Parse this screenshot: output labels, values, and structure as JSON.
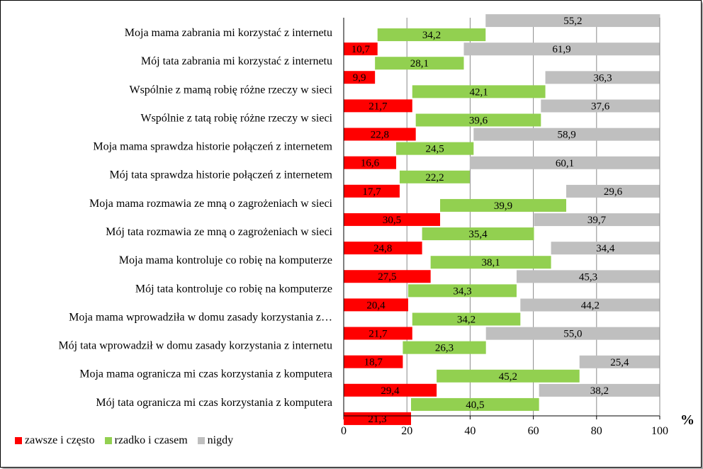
{
  "chart_data": {
    "type": "bar",
    "orientation": "horizontal",
    "stacked": true,
    "unit_label": "%",
    "xlim": [
      0,
      100
    ],
    "x_ticks": [
      "0",
      "20",
      "40",
      "60",
      "80",
      "100"
    ],
    "grid": "vertical",
    "legend_position": "bottom-left",
    "categories": [
      "Moja mama zabrania mi korzystać z internetu",
      "Mój tata zabrania mi korzystać z internetu",
      "Wspólnie z mamą robię różne rzeczy w sieci",
      "Wspólnie z tatą robię różne rzeczy  w sieci",
      "Moja mama sprawdza historie połączeń z internetem",
      "Mój tata sprawdza historie połączeń z internetem",
      "Moja mama rozmawia ze mną o zagrożeniach w sieci",
      "Mój tata rozmawia ze mną o zagrożeniach w sieci",
      "Moja mama kontroluje co robię na komputerze",
      "Mój tata kontroluje co robię na komputerze",
      "Moja mama wprowadziła w domu zasady korzystania z…",
      "Mój tata wprowadził w domu zasady korzystania z internetu",
      "Moja mama ogranicza mi czas korzystania z komputera",
      "Mój tata ogranicza mi czas korzystania z komputera"
    ],
    "series": [
      {
        "name": "zawsze i często",
        "color": "#ff0000",
        "values": [
          10.7,
          9.9,
          21.7,
          22.8,
          16.6,
          17.7,
          30.5,
          24.8,
          27.5,
          20.4,
          21.7,
          18.7,
          29.4,
          21.3
        ],
        "labels": [
          "10,7",
          "9,9",
          "21,7",
          "22,8",
          "16,6",
          "17,7",
          "30,5",
          "24,8",
          "27,5",
          "20,4",
          "21,7",
          "18,7",
          "29,4",
          "21,3"
        ]
      },
      {
        "name": "rzadko i czasem",
        "color": "#92d050",
        "values": [
          34.2,
          28.1,
          42.1,
          39.6,
          24.5,
          22.2,
          39.9,
          35.4,
          38.1,
          34.3,
          34.2,
          26.3,
          45.2,
          40.5
        ],
        "labels": [
          "34,2",
          "28,1",
          "42,1",
          "39,6",
          "24,5",
          "22,2",
          "39,9",
          "35,4",
          "38,1",
          "34,3",
          "34,2",
          "26,3",
          "45,2",
          "40,5"
        ]
      },
      {
        "name": "nigdy",
        "color": "#bfbfbf",
        "values": [
          55.2,
          61.9,
          36.3,
          37.6,
          58.9,
          60.1,
          29.6,
          39.7,
          34.4,
          45.3,
          44.2,
          55.0,
          25.4,
          38.2
        ],
        "labels": [
          "55,2",
          "61,9",
          "36,3",
          "37,6",
          "58,9",
          "60,1",
          "29,6",
          "39,7",
          "34,4",
          "45,3",
          "44,2",
          "55,0",
          "25,4",
          "38,2"
        ]
      }
    ]
  }
}
